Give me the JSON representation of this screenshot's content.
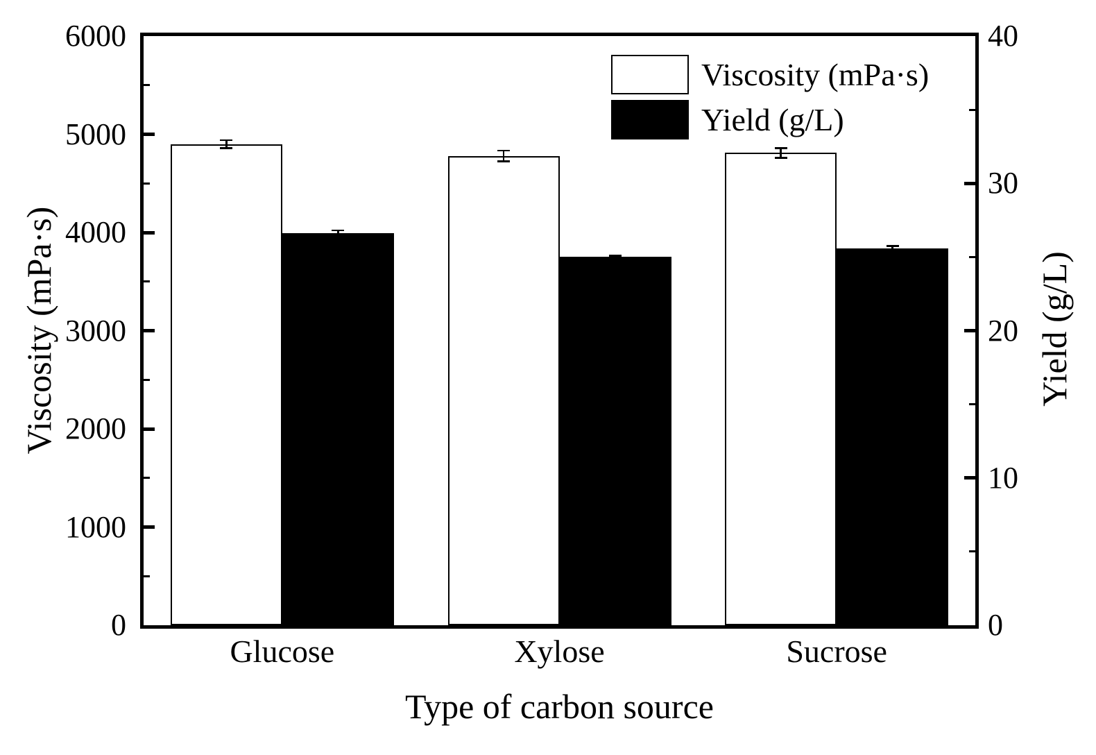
{
  "chart_data": {
    "type": "bar",
    "title": "",
    "categories": [
      "Glucose",
      "Xylose",
      "Sucrose"
    ],
    "series": [
      {
        "name": "Viscosity (mPa·s)",
        "axis": "left",
        "fill_color": "#ffffff",
        "border_color": "#000000",
        "values": [
          4900,
          4780,
          4810
        ],
        "errors": [
          40,
          55,
          50
        ]
      },
      {
        "name": "Yield (g/L)",
        "axis": "right",
        "fill_color": "#000000",
        "border_color": "#000000",
        "values": [
          26.6,
          25.0,
          25.6
        ],
        "errors": [
          0.2,
          0.1,
          0.15
        ]
      }
    ],
    "left_axis": {
      "label": "Viscosity (mPa·s)",
      "min": 0,
      "max": 6000,
      "major_step": 1000,
      "minor_step": 500,
      "tick_labels": [
        "0",
        "1000",
        "2000",
        "3000",
        "4000",
        "5000",
        "6000"
      ]
    },
    "right_axis": {
      "label": "Yield (g/L)",
      "min": 0,
      "max": 40,
      "major_step": 10,
      "minor_step": 5,
      "tick_labels": [
        "0",
        "10",
        "20",
        "30",
        "40"
      ]
    },
    "x_axis": {
      "label": "Type of carbon source"
    },
    "legend": {
      "position": "top-right-inside",
      "entries": [
        "Viscosity (mPa·s)",
        "Yield (g/L)"
      ]
    },
    "grid": false,
    "background_color": "#ffffff",
    "foreground_color": "#000000"
  }
}
